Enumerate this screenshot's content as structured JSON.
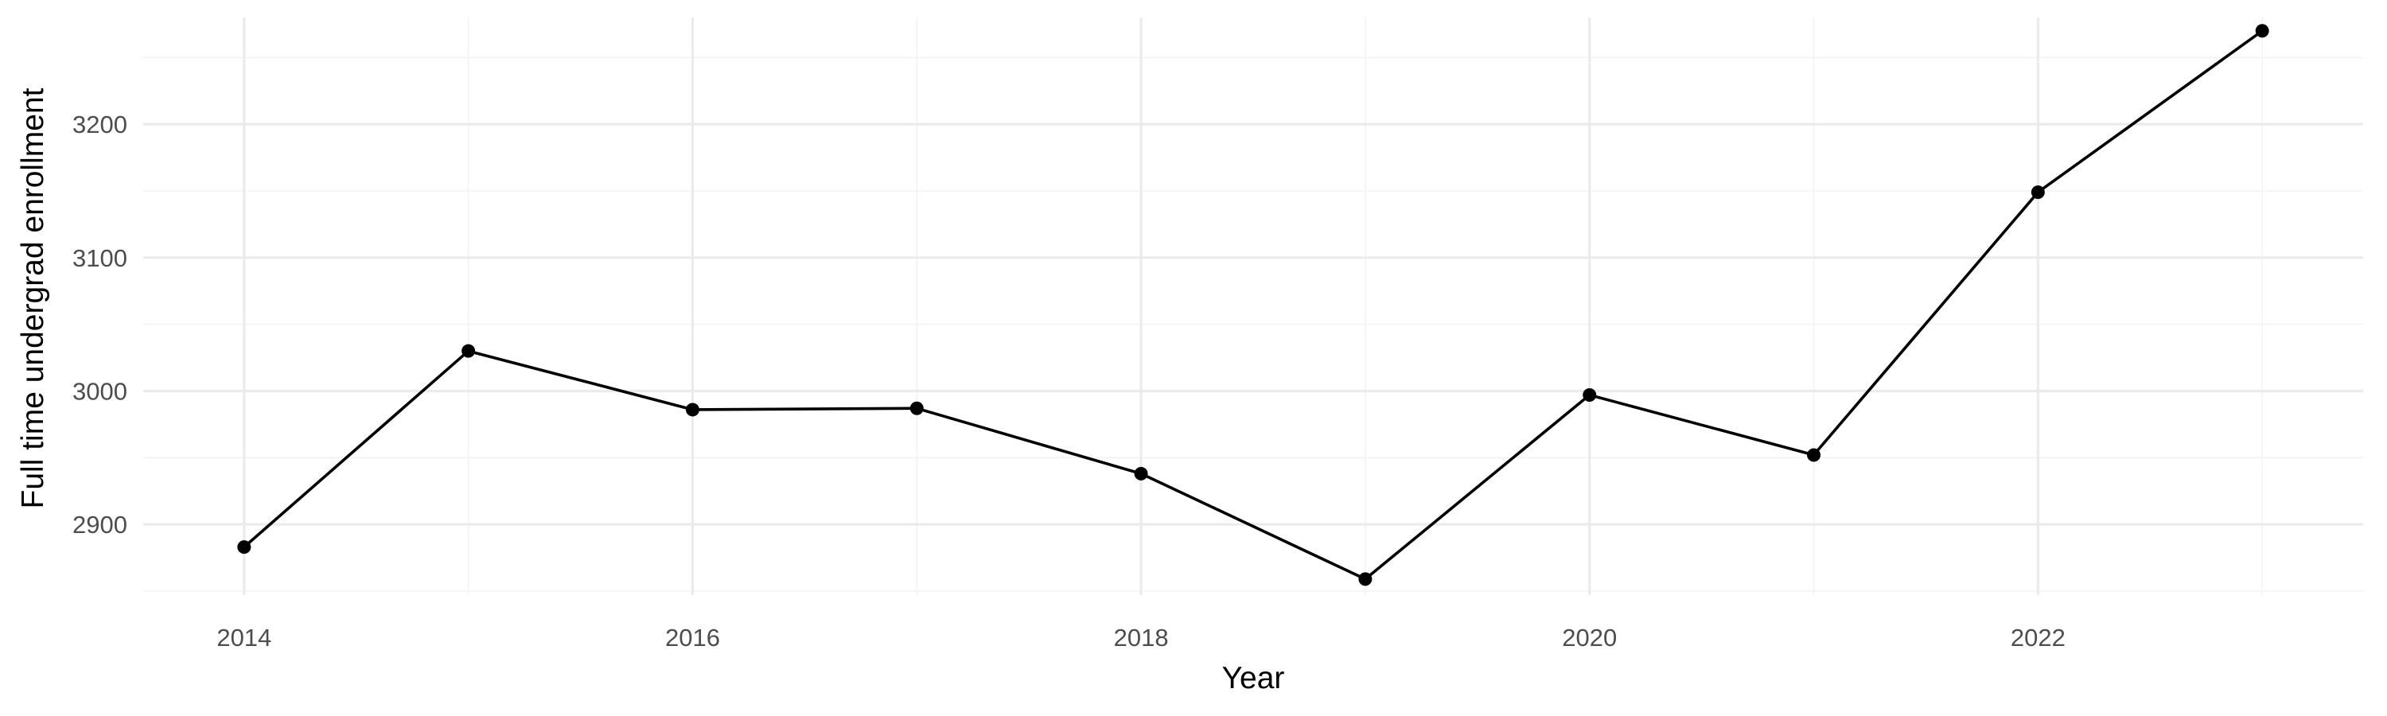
{
  "chart_data": {
    "type": "line",
    "title": "",
    "xlabel": "Year",
    "ylabel": "Full time undergrad enrollment",
    "x": [
      2014,
      2015,
      2016,
      2017,
      2018,
      2019,
      2020,
      2021,
      2022,
      2023
    ],
    "series": [
      {
        "values": [
          2883,
          3030,
          2986,
          2987,
          2938,
          2859,
          2997,
          2952,
          3149,
          3270
        ]
      }
    ],
    "xlim": [
      2013.55,
      2023.45
    ],
    "ylim": [
      2847,
      3280
    ],
    "x_ticks": [
      2014,
      2016,
      2018,
      2020,
      2022
    ],
    "y_ticks": [
      2900,
      3000,
      3100,
      3200
    ],
    "grid": true,
    "legend": "none",
    "colors": {
      "line": "#000000",
      "grid": "#ebebeb",
      "tick_text": "#4d4d4d"
    }
  }
}
